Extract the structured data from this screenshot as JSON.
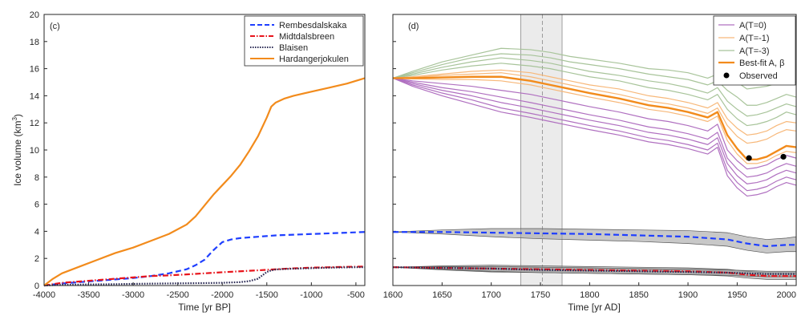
{
  "chart_data": [
    {
      "type": "line",
      "panel_label": "(c)",
      "xlabel": "Time [yr BP]",
      "ylabel": "Ice volume (km",
      "ylabel_sup": "3",
      "ylabel_end": ")",
      "xlim": [
        -4000,
        -400
      ],
      "ylim": [
        0,
        20
      ],
      "xticks": [
        -4000,
        -3500,
        -3000,
        -2500,
        -2000,
        -1500,
        -1000,
        -500
      ],
      "yticks": [
        0,
        2,
        4,
        6,
        8,
        10,
        12,
        14,
        16,
        18,
        20
      ],
      "legend_position": "top-right",
      "series": [
        {
          "name": "Rembesdalskaka",
          "color": "#1f3fff",
          "style": "dashed",
          "x": [
            -4000,
            -3800,
            -3500,
            -3200,
            -3000,
            -2800,
            -2600,
            -2400,
            -2300,
            -2200,
            -2100,
            -2000,
            -1900,
            -1800,
            -1600,
            -1400,
            -1200,
            -1000,
            -800,
            -600,
            -400
          ],
          "y": [
            0,
            0.15,
            0.3,
            0.45,
            0.55,
            0.7,
            0.9,
            1.2,
            1.5,
            1.9,
            2.6,
            3.2,
            3.4,
            3.5,
            3.6,
            3.7,
            3.75,
            3.8,
            3.85,
            3.9,
            3.95
          ]
        },
        {
          "name": "Midtdalsbreen",
          "color": "#e8141b",
          "style": "dashdot",
          "x": [
            -4000,
            -3800,
            -3500,
            -3200,
            -3000,
            -2800,
            -2600,
            -2400,
            -2200,
            -2000,
            -1800,
            -1600,
            -1400,
            -1200,
            -1000,
            -800,
            -600,
            -400
          ],
          "y": [
            0,
            0.2,
            0.35,
            0.5,
            0.6,
            0.7,
            0.75,
            0.82,
            0.9,
            0.98,
            1.05,
            1.12,
            1.2,
            1.27,
            1.32,
            1.35,
            1.38,
            1.4
          ]
        },
        {
          "name": "Blaisen",
          "color": "#2b2b55",
          "style": "dotted",
          "x": [
            -4000,
            -3800,
            -3500,
            -3200,
            -3000,
            -2800,
            -2500,
            -2200,
            -2000,
            -1800,
            -1700,
            -1600,
            -1550,
            -1500,
            -1450,
            -1400,
            -1300,
            -1100,
            -900,
            -700,
            -500,
            -400
          ],
          "y": [
            0,
            0.05,
            0.08,
            0.1,
            0.12,
            0.14,
            0.16,
            0.18,
            0.2,
            0.25,
            0.32,
            0.5,
            0.75,
            1.0,
            1.12,
            1.18,
            1.22,
            1.26,
            1.3,
            1.33,
            1.35,
            1.35
          ]
        },
        {
          "name": "Hardangerjokulen",
          "color": "#f28b1c",
          "style": "solid",
          "x": [
            -4000,
            -3900,
            -3800,
            -3600,
            -3400,
            -3200,
            -3000,
            -2800,
            -2600,
            -2400,
            -2300,
            -2200,
            -2100,
            -2000,
            -1900,
            -1800,
            -1700,
            -1600,
            -1500,
            -1450,
            -1400,
            -1300,
            -1200,
            -1000,
            -800,
            -600,
            -400
          ],
          "y": [
            0,
            0.5,
            0.9,
            1.4,
            1.9,
            2.4,
            2.8,
            3.3,
            3.8,
            4.5,
            5.1,
            5.9,
            6.7,
            7.4,
            8.1,
            8.9,
            9.9,
            11.0,
            12.4,
            13.2,
            13.5,
            13.8,
            14.0,
            14.3,
            14.6,
            14.9,
            15.3
          ]
        }
      ]
    },
    {
      "type": "line",
      "panel_label": "(d)",
      "xlabel": "Time [yr AD]",
      "xlim": [
        1600,
        2010
      ],
      "ylim": [
        0,
        20
      ],
      "xticks": [
        1600,
        1650,
        1700,
        1750,
        1800,
        1850,
        1900,
        1950,
        2000
      ],
      "yticks": [
        0,
        2,
        4,
        6,
        8,
        10,
        12,
        14,
        16,
        18,
        20
      ],
      "shaded_period": [
        1730,
        1772
      ],
      "dashed_line_x": 1752,
      "legend_position": "top-right",
      "legend": [
        {
          "label": "A(T=0)",
          "color": "#b070c0",
          "style": "solid"
        },
        {
          "label": "A(T=-1)",
          "color": "#f7b87a",
          "style": "solid"
        },
        {
          "label": "A(T=-3)",
          "color": "#a8c49a",
          "style": "solid"
        },
        {
          "label": "Best-fit A,  β",
          "color": "#f28b1c",
          "style": "bold"
        },
        {
          "label": "Observed",
          "color": "#000000",
          "style": "marker"
        }
      ],
      "x": [
        1600,
        1620,
        1650,
        1680,
        1710,
        1740,
        1760,
        1780,
        1800,
        1830,
        1860,
        1880,
        1900,
        1910,
        1920,
        1930,
        1940,
        1950,
        1960,
        1970,
        1980,
        1990,
        2000,
        2010
      ],
      "ensemble": [
        {
          "group": "green",
          "color": "#a8c49a",
          "y": [
            15.3,
            15.8,
            16.5,
            17.0,
            17.5,
            17.4,
            17.2,
            16.9,
            16.7,
            16.4,
            16.0,
            15.9,
            15.7,
            15.5,
            15.3,
            15.6,
            15.2,
            15.0,
            14.5,
            14.6,
            14.7,
            14.9,
            15.2,
            15.0
          ]
        },
        {
          "group": "green",
          "color": "#a8c49a",
          "y": [
            15.3,
            15.7,
            16.3,
            16.8,
            17.1,
            17.0,
            16.8,
            16.5,
            16.3,
            16.0,
            15.6,
            15.4,
            15.2,
            15.0,
            14.8,
            15.1,
            14.4,
            13.9,
            13.3,
            13.3,
            13.5,
            13.8,
            14.1,
            13.9
          ]
        },
        {
          "group": "green",
          "color": "#a8c49a",
          "y": [
            15.3,
            15.6,
            16.1,
            16.5,
            16.8,
            16.6,
            16.4,
            16.1,
            15.8,
            15.5,
            15.1,
            14.9,
            14.6,
            14.4,
            14.2,
            14.6,
            13.6,
            13.0,
            12.5,
            12.6,
            12.8,
            13.1,
            13.4,
            13.2
          ]
        },
        {
          "group": "green",
          "color": "#a8c49a",
          "y": [
            15.3,
            15.5,
            15.9,
            16.2,
            16.4,
            16.2,
            16.0,
            15.7,
            15.4,
            15.1,
            14.6,
            14.4,
            14.1,
            13.9,
            13.7,
            14.1,
            13.0,
            12.3,
            11.8,
            11.9,
            12.1,
            12.4,
            12.8,
            12.6
          ]
        },
        {
          "group": "orange",
          "color": "#f7b87a",
          "y": [
            15.3,
            15.4,
            15.6,
            15.8,
            15.9,
            15.7,
            15.4,
            15.1,
            14.8,
            14.5,
            14.0,
            13.8,
            13.5,
            13.3,
            13.1,
            13.5,
            12.3,
            11.6,
            11.1,
            11.2,
            11.4,
            11.8,
            12.1,
            12.0
          ]
        },
        {
          "group": "orange",
          "color": "#f7b87a",
          "y": [
            15.3,
            15.35,
            15.5,
            15.6,
            15.7,
            15.4,
            15.1,
            14.8,
            14.5,
            14.1,
            13.6,
            13.4,
            13.1,
            12.9,
            12.7,
            13.1,
            11.8,
            11.0,
            10.5,
            10.6,
            10.8,
            11.2,
            11.5,
            11.4
          ]
        },
        {
          "group": "best",
          "color": "#f28b1c",
          "y": [
            15.3,
            15.3,
            15.35,
            15.4,
            15.4,
            15.1,
            14.8,
            14.5,
            14.2,
            13.8,
            13.3,
            13.1,
            12.8,
            12.6,
            12.4,
            12.8,
            11.1,
            10.1,
            9.3,
            9.3,
            9.5,
            9.9,
            10.3,
            10.2
          ]
        },
        {
          "group": "orange",
          "color": "#f7b87a",
          "y": [
            15.3,
            15.25,
            15.2,
            15.2,
            15.1,
            14.8,
            14.5,
            14.2,
            13.9,
            13.5,
            13.0,
            12.8,
            12.5,
            12.3,
            12.1,
            12.5,
            10.7,
            9.7,
            9.0,
            9.0,
            9.2,
            9.6,
            9.9,
            9.8
          ]
        },
        {
          "group": "purple",
          "color": "#b070c0",
          "y": [
            15.3,
            15.1,
            14.9,
            14.7,
            14.4,
            14.1,
            13.8,
            13.5,
            13.2,
            12.8,
            12.3,
            12.1,
            11.8,
            11.6,
            11.4,
            11.9,
            10.0,
            9.2,
            8.6,
            8.7,
            8.9,
            9.3,
            9.6,
            9.4
          ]
        },
        {
          "group": "purple",
          "color": "#b070c0",
          "y": [
            15.3,
            15.0,
            14.6,
            14.3,
            13.9,
            13.5,
            13.2,
            12.9,
            12.6,
            12.2,
            11.7,
            11.5,
            11.2,
            11.0,
            10.8,
            11.3,
            9.4,
            8.6,
            8.0,
            8.1,
            8.3,
            8.7,
            9.0,
            8.8
          ]
        },
        {
          "group": "purple",
          "color": "#b070c0",
          "y": [
            15.3,
            14.9,
            14.4,
            14.0,
            13.5,
            13.1,
            12.8,
            12.5,
            12.2,
            11.8,
            11.3,
            11.1,
            10.8,
            10.6,
            10.4,
            10.9,
            9.0,
            8.1,
            7.5,
            7.6,
            7.8,
            8.2,
            8.5,
            8.3
          ]
        },
        {
          "group": "purple",
          "color": "#b070c0",
          "y": [
            15.3,
            14.8,
            14.2,
            13.7,
            13.1,
            12.7,
            12.4,
            12.1,
            11.8,
            11.4,
            10.9,
            10.7,
            10.4,
            10.2,
            10.0,
            10.5,
            8.5,
            7.6,
            7.0,
            7.1,
            7.3,
            7.7,
            8.0,
            7.8
          ]
        },
        {
          "group": "purple",
          "color": "#b070c0",
          "y": [
            15.3,
            14.7,
            14.0,
            13.4,
            12.8,
            12.4,
            12.1,
            11.8,
            11.5,
            11.1,
            10.6,
            10.4,
            10.1,
            9.9,
            9.7,
            10.2,
            8.1,
            7.2,
            6.6,
            6.7,
            6.9,
            7.3,
            7.6,
            7.4
          ]
        }
      ],
      "observed": {
        "x": [
          1962,
          1997
        ],
        "y": [
          9.4,
          9.5
        ]
      },
      "lower_bands": [
        {
          "name": "Rembesdalskaka",
          "color": "#1f3fff",
          "style": "dashed",
          "band_color": "#9a9a9a",
          "x": [
            1600,
            1650,
            1700,
            1750,
            1800,
            1850,
            1900,
            1940,
            1960,
            1980,
            2000,
            2010
          ],
          "y": [
            3.95,
            3.95,
            3.9,
            3.85,
            3.8,
            3.7,
            3.6,
            3.4,
            3.1,
            2.9,
            3.0,
            3.0
          ],
          "lower": [
            3.95,
            3.8,
            3.6,
            3.45,
            3.35,
            3.25,
            3.1,
            2.9,
            2.6,
            2.4,
            2.5,
            2.5
          ],
          "upper": [
            3.95,
            4.1,
            4.2,
            4.2,
            4.15,
            4.1,
            4.05,
            3.9,
            3.6,
            3.4,
            3.5,
            3.6
          ]
        },
        {
          "name": "Midtdalsbreen",
          "color": "#e8141b",
          "style": "dashdot",
          "band_color": "#9a9a9a",
          "x": [
            1600,
            1650,
            1700,
            1750,
            1800,
            1850,
            1900,
            1940,
            1960,
            1980,
            2000,
            2010
          ],
          "y": [
            1.35,
            1.3,
            1.25,
            1.2,
            1.15,
            1.1,
            1.05,
            0.95,
            0.8,
            0.7,
            0.7,
            0.7
          ],
          "lower": [
            1.35,
            1.15,
            1.0,
            0.95,
            0.9,
            0.85,
            0.8,
            0.7,
            0.55,
            0.45,
            0.45,
            0.45
          ],
          "upper": [
            1.35,
            1.45,
            1.5,
            1.45,
            1.4,
            1.35,
            1.3,
            1.2,
            1.05,
            0.95,
            0.95,
            0.95
          ]
        },
        {
          "name": "Blaisen",
          "color": "#2b2b55",
          "style": "dotted",
          "band_color": "#9a9a9a",
          "x": [
            1600,
            1650,
            1700,
            1750,
            1800,
            1850,
            1900,
            1940,
            1960,
            1980,
            2000,
            2010
          ],
          "y": [
            1.35,
            1.3,
            1.25,
            1.15,
            1.1,
            1.05,
            1.0,
            0.95,
            0.9,
            0.85,
            0.85,
            0.85
          ],
          "lower": [
            1.35,
            1.2,
            1.05,
            0.95,
            0.9,
            0.85,
            0.8,
            0.75,
            0.7,
            0.65,
            0.65,
            0.65
          ],
          "upper": [
            1.35,
            1.4,
            1.4,
            1.35,
            1.3,
            1.25,
            1.2,
            1.15,
            1.1,
            1.05,
            1.05,
            1.05
          ]
        }
      ]
    }
  ]
}
